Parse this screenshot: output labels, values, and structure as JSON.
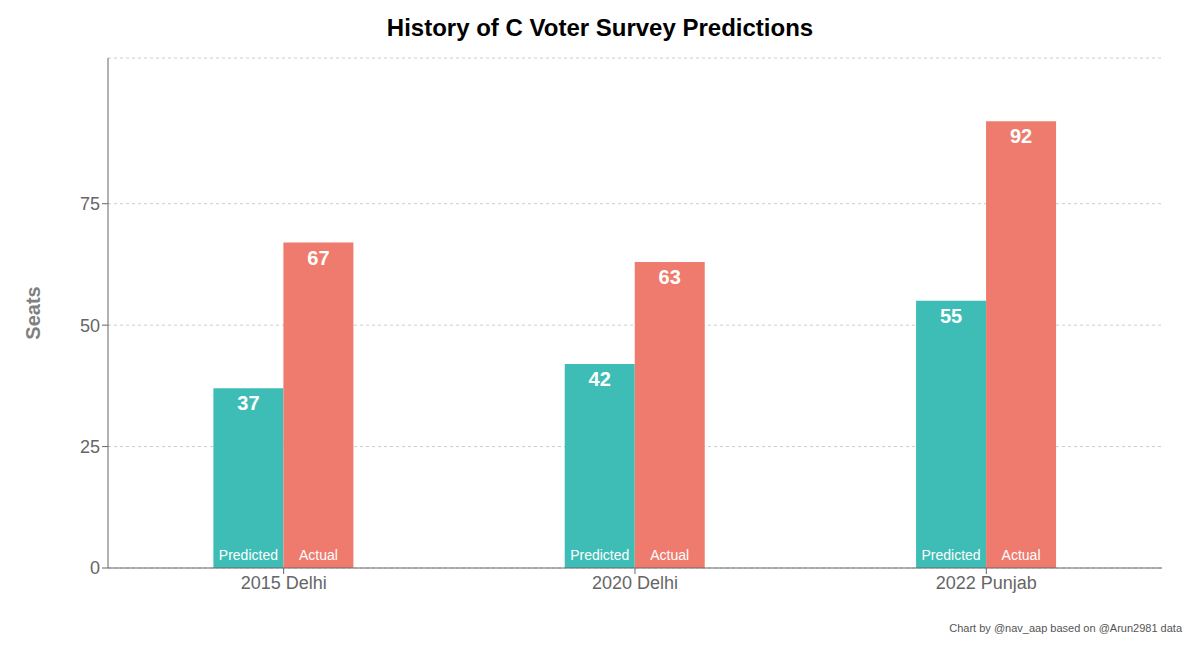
{
  "chart_data": {
    "type": "bar",
    "title": "History of C Voter Survey Predictions",
    "ylabel": "Seats",
    "caption": "Chart by @nav_aap based on @Arun2981 data",
    "categories": [
      "2015 Delhi",
      "2020 Delhi",
      "2022 Punjab"
    ],
    "series": [
      {
        "name": "Predicted",
        "color": "#3DBDB5",
        "values": [
          37,
          42,
          55
        ]
      },
      {
        "name": "Actual",
        "color": "#EE7B6D",
        "values": [
          67,
          63,
          92
        ]
      }
    ],
    "ylim": [
      0,
      105
    ],
    "yticks": [
      0,
      25,
      50,
      75
    ],
    "grid": true,
    "data_labels": true
  }
}
